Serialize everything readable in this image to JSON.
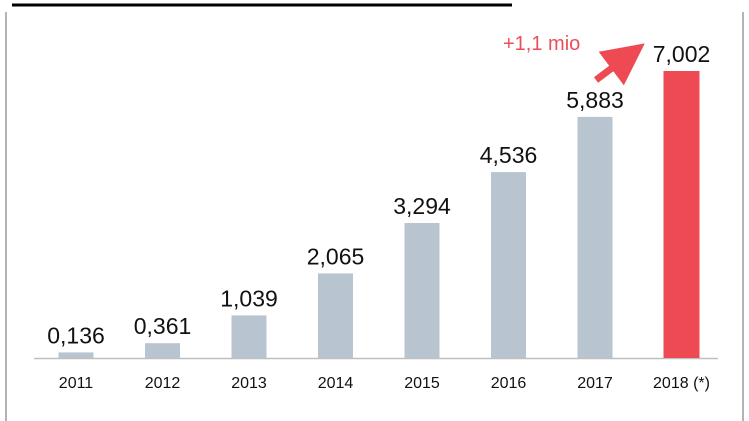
{
  "chart_data": {
    "type": "bar",
    "categories": [
      "2011",
      "2012",
      "2013",
      "2014",
      "2015",
      "2016",
      "2017",
      "2018 (*)"
    ],
    "values": [
      0.136,
      0.361,
      1.039,
      2.065,
      3.294,
      4.536,
      5.883,
      7.002
    ],
    "value_labels": [
      "0,136",
      "0,361",
      "1,039",
      "2,065",
      "3,294",
      "4,536",
      "5,883",
      "7,002"
    ],
    "ylim": [
      0,
      7.002
    ],
    "grid": false,
    "legend": "none",
    "highlight_index": 7,
    "annotation": "+1,1 mio",
    "colors": {
      "bar": "#b8c4cf",
      "highlight": "#ee4a53",
      "annotation": "#e8505a",
      "axis": "#bfbfbf",
      "title_rule": "#000000",
      "border": "#9a9a9a"
    }
  }
}
